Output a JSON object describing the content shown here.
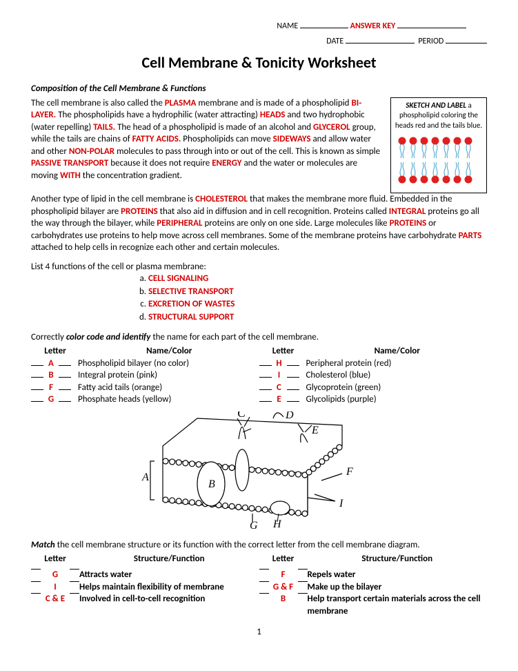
{
  "header": {
    "name_label": "NAME",
    "answer_key": "ANSWER KEY",
    "date_label": "DATE",
    "period_label": "PERIOD"
  },
  "title": "Cell Membrane & Tonicity Worksheet",
  "section1_heading": "Composition of the Cell Membrane & Functions",
  "para1": {
    "t1": "The cell membrane is also called the ",
    "k1": "PLASMA",
    "t2": " membrane and is made of a phospholipid ",
    "k2": "BI-LAYER.",
    "t3": "  The phospholipids have a hydrophilic (water attracting) ",
    "k3": "HEADS",
    "t4": " and two hydrophobic (water repelling) ",
    "k4": "TAILS.",
    "t5": " The head of a phospholipid is made of an alcohol and ",
    "k5": "GLYCEROL",
    "t6": "  group, while the tails are chains of ",
    "k6": "FATTY ACIDS.",
    "t7": "  Phospholipids can move ",
    "k7": "SIDEWAYS",
    "t8": " and allow water and other ",
    "k8": "NON-POLAR",
    "t9": " molecules to pass through into or out of the cell.  This is known as simple ",
    "k9": "PASSIVE TRANSPORT",
    "t10": " because it does not require ",
    "k10": "ENERGY",
    "t11": " and the water or molecules are moving ",
    "k11": "WITH",
    "t12": " the concentration gradient."
  },
  "sketchbox": {
    "bold": "SKETCH AND LABEL",
    "rest": " a phospholipid coloring the heads red and the tails blue.",
    "head_color": "#e02020",
    "tail_color": "#3aa0d0"
  },
  "para2": {
    "t1": "Another type of lipid in the cell membrane is ",
    "k1": "CHOLESTEROL",
    "t2": " that makes the membrane more fluid.  Embedded in the phospholipid bilayer are ",
    "k2": "PROTEINS",
    "t3": " that also aid in diffusion and in cell recognition.  Proteins called ",
    "k3": "INTEGRAL",
    "t4": " proteins go all the way through the bilayer, while ",
    "k4": "PERIPHERAL",
    "t5": " proteins are only on one side.  Large molecules like ",
    "k5": "PROTEINS",
    "t6": " or carbohydrates use proteins to help move across cell membranes.  Some of the membrane proteins have carbohydrate ",
    "k6": "PARTS",
    "t7": " attached to help cells in recognize each other and certain molecules."
  },
  "list_intro": "List 4 functions of the cell or plasma membrane:",
  "functions": [
    "CELL SIGNALING",
    "SELECTIVE TRANSPORT",
    "EXCRETION OF WASTES",
    "STRUCTURAL SUPPORT"
  ],
  "cc_intro_a": "Correctly ",
  "cc_intro_b": "color code and identify",
  "cc_intro_c": " the name for each part of the cell membrane.",
  "cc_headers": {
    "letter": "Letter",
    "name": "Name/Color"
  },
  "cc_left": [
    {
      "l": "A",
      "n": "Phospholipid bilayer (no color)"
    },
    {
      "l": "B",
      "n": "Integral protein (pink)"
    },
    {
      "l": "F",
      "n": "Fatty acid tails (orange)"
    },
    {
      "l": "G",
      "n": "Phosphate heads (yellow)"
    }
  ],
  "cc_right": [
    {
      "l": "H",
      "n": "Peripheral protein (red)"
    },
    {
      "l": "I",
      "n": "Cholesterol (blue)"
    },
    {
      "l": "C",
      "n": "Glycoprotein (green)"
    },
    {
      "l": "E",
      "n": "Glycolipids (purple)"
    }
  ],
  "diagram_labels": [
    "A",
    "B",
    "C",
    "D",
    "E",
    "F",
    "G",
    "H",
    "I"
  ],
  "match_intro_a": "Match",
  "match_intro_b": " the cell membrane structure or its function with the correct letter from the cell membrane diagram.",
  "match_headers": {
    "letter": "Letter",
    "sf": "Structure/Function"
  },
  "match_left": [
    {
      "l": "G",
      "f": "Attracts water"
    },
    {
      "l": "I",
      "f": "Helps maintain flexibility of membrane"
    },
    {
      "l": "C & E",
      "f": "Involved in cell-to-cell recognition"
    }
  ],
  "match_right": [
    {
      "l": "F",
      "f": "Repels water"
    },
    {
      "l": "G & F",
      "f": "Make up the bilayer"
    },
    {
      "l": "B",
      "f": "Help transport certain materials across the cell membrane"
    }
  ],
  "page_number": "1"
}
